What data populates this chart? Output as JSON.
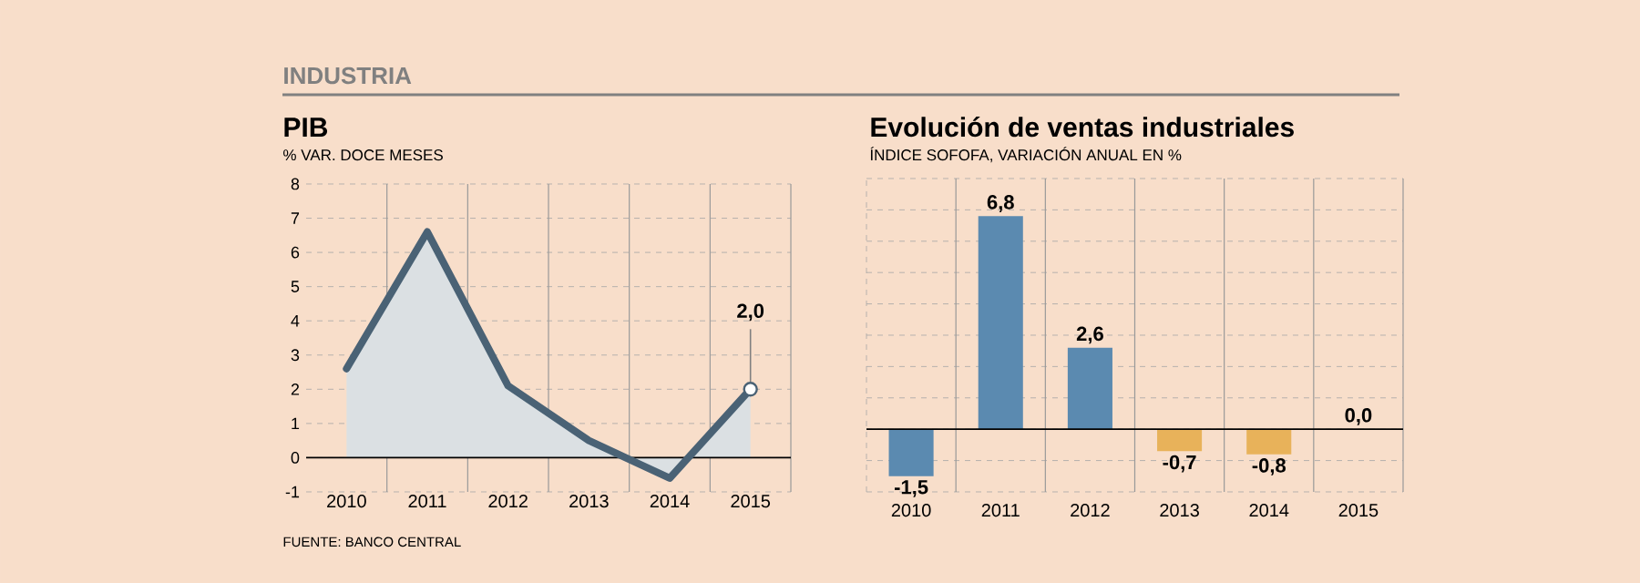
{
  "chart_data": [
    {
      "type": "area",
      "title": "PIB",
      "subtitle": "% VAR. DOCE MESES",
      "annotations": [
        "INDUSTRIA",
        "FUENTE: BANCO CENTRAL"
      ],
      "categories": [
        "2010",
        "2011",
        "2012",
        "2013",
        "2014",
        "2015"
      ],
      "series": [
        {
          "color": "#4a6275",
          "values": [
            2.6,
            6.6,
            2.1,
            0.5,
            -0.6,
            2.0
          ],
          "value_labels": [
            null,
            null,
            null,
            null,
            null,
            "2,0"
          ]
        }
      ],
      "ylim": [
        -1,
        8
      ],
      "yticks": [
        -1,
        0,
        1,
        2,
        3,
        4,
        5,
        6,
        7,
        8
      ],
      "grid": true,
      "marker": "none"
    },
    {
      "type": "bar",
      "title": "Evolución de ventas industriales",
      "subtitle": "ÍNDICE SOFOFA, VARIACIÓN ANUAL EN %",
      "categories": [
        "2010",
        "2011",
        "2012",
        "2013",
        "2014",
        "2015"
      ],
      "values": [
        -1.5,
        6.8,
        2.6,
        -0.7,
        -0.8,
        0.0
      ],
      "colors": [
        "#5b8ab0",
        "#5b8ab0",
        "#5b8ab0",
        "#e8b25a",
        "#e8b25a",
        "#e8b25a"
      ],
      "value_labels": [
        "-1,5",
        "6,8",
        "2,6",
        "-0,7",
        "-0,8",
        "0,0"
      ],
      "ylim": [
        -2,
        8
      ],
      "yticks": [
        {
          "value": -2,
          "label": null
        },
        {
          "value": -1,
          "label": null
        },
        {
          "value": 0,
          "label": null
        },
        {
          "value": 1,
          "label": null
        },
        {
          "value": 2,
          "label": null
        },
        {
          "value": 3,
          "label": null
        },
        {
          "value": 4,
          "label": null
        },
        {
          "value": 5,
          "label": null
        },
        {
          "value": 6,
          "label": null
        },
        {
          "value": 7,
          "label": null
        },
        {
          "value": 8,
          "label": null
        }
      ],
      "tick_labels": "x",
      "grid": true
    }
  ]
}
